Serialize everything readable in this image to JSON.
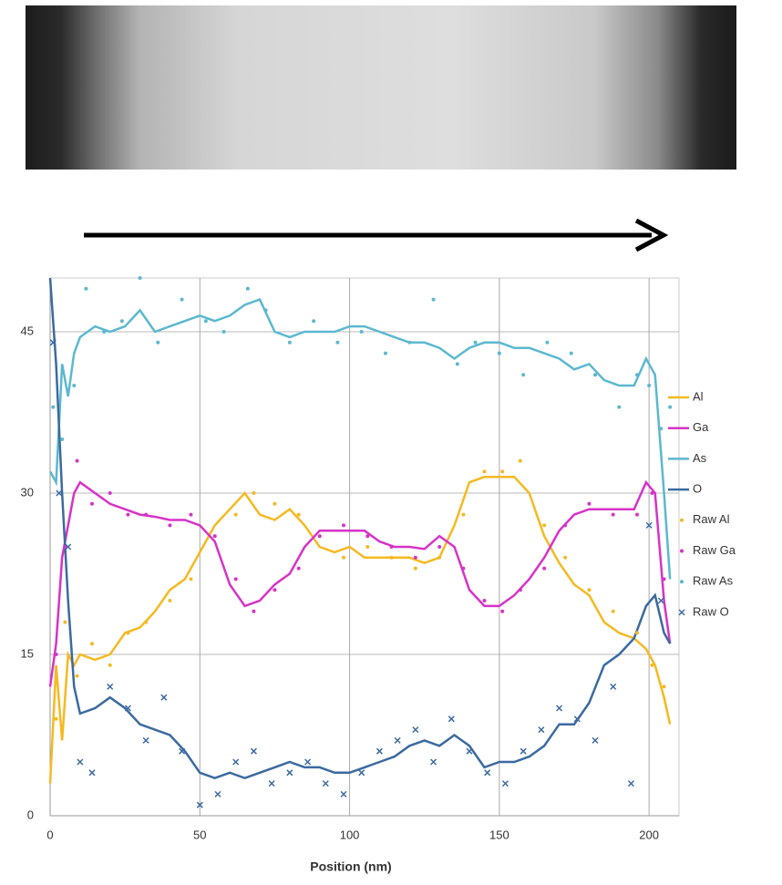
{
  "chart_data": {
    "type": "line",
    "x_label": "Position (nm)",
    "xlim": [
      0,
      210
    ],
    "ylim": [
      0,
      50
    ],
    "xticks": [
      0,
      50,
      100,
      150,
      200
    ],
    "yticks": [
      0,
      15,
      30,
      45
    ],
    "grid": true,
    "legend": "right",
    "x": [
      0,
      2,
      4,
      6,
      8,
      10,
      15,
      20,
      25,
      30,
      35,
      40,
      45,
      50,
      55,
      60,
      65,
      70,
      75,
      80,
      85,
      90,
      95,
      100,
      105,
      110,
      115,
      120,
      125,
      130,
      135,
      140,
      145,
      150,
      155,
      160,
      165,
      170,
      175,
      180,
      185,
      190,
      195,
      199,
      202,
      205,
      207
    ],
    "series": [
      {
        "name": "Al",
        "color": "#f5b921",
        "style": "line",
        "values": [
          3,
          14,
          7,
          15,
          14,
          15,
          14.5,
          15,
          17,
          17.5,
          19,
          21,
          22,
          24.5,
          27,
          28.5,
          30,
          28,
          27.5,
          28.5,
          27,
          25,
          24.5,
          25,
          24,
          24,
          24,
          24,
          23.5,
          24,
          27,
          31,
          31.5,
          31.5,
          31.5,
          30,
          26,
          23.5,
          21.5,
          20.5,
          18,
          17,
          16.5,
          15.5,
          14,
          11,
          8.5
        ]
      },
      {
        "name": "Ga",
        "color": "#d633c8",
        "style": "line",
        "values": [
          12,
          16,
          24,
          27,
          30,
          31,
          30,
          29,
          28.5,
          28,
          27.8,
          27.5,
          27.5,
          27,
          25.5,
          21.5,
          19.5,
          20,
          21.5,
          22.5,
          25,
          26.5,
          26.5,
          26.5,
          26.5,
          25.5,
          25,
          25,
          24.8,
          26,
          25,
          21,
          19.5,
          19.5,
          20.5,
          22,
          24,
          26.5,
          28,
          28.5,
          28.5,
          28.5,
          28.5,
          31,
          30,
          20,
          16
        ]
      },
      {
        "name": "As",
        "color": "#5bb8cf",
        "style": "line",
        "values": [
          32,
          31,
          42,
          39,
          43,
          44.5,
          45.5,
          45,
          45.5,
          47,
          45,
          45.5,
          46,
          46.5,
          46,
          46.5,
          47.5,
          48,
          45,
          44.5,
          45,
          45,
          45,
          45.5,
          45.5,
          45,
          44.5,
          44,
          44,
          43.5,
          42.5,
          43.5,
          44,
          44,
          43.5,
          43.5,
          43,
          42.5,
          41.5,
          42,
          40.5,
          40,
          40,
          42.5,
          41,
          30,
          22
        ]
      },
      {
        "name": "O",
        "color": "#3b6aa0",
        "style": "line",
        "values": [
          50,
          42,
          30,
          20,
          12,
          9.5,
          10,
          11,
          10,
          8.5,
          8,
          7.5,
          6,
          4,
          3.5,
          4,
          3.5,
          4,
          4.5,
          5,
          4.5,
          4.5,
          4,
          4,
          4.5,
          5,
          5.5,
          6.5,
          7,
          6.5,
          7.5,
          6.5,
          4.5,
          5,
          5,
          5.5,
          6.5,
          8.5,
          8.5,
          10.5,
          14,
          15,
          16.5,
          19.5,
          20.5,
          17,
          16
        ]
      },
      {
        "name": "Raw Al",
        "color": "#f5b921",
        "style": "dot",
        "x": [
          2,
          5,
          9,
          14,
          20,
          26,
          32,
          40,
          47,
          55,
          62,
          68,
          75,
          83,
          90,
          98,
          106,
          114,
          122,
          130,
          138,
          145,
          151,
          157,
          165,
          172,
          180,
          188,
          196,
          201,
          205
        ],
        "values": [
          9,
          18,
          13,
          16,
          14,
          17,
          18,
          20,
          22,
          26,
          28,
          30,
          29,
          28,
          26,
          24,
          25,
          24,
          23,
          24,
          28,
          32,
          32,
          33,
          27,
          24,
          21,
          19,
          17,
          14,
          12
        ]
      },
      {
        "name": "Raw Ga",
        "color": "#d633c8",
        "style": "dot",
        "x": [
          2,
          5,
          9,
          14,
          20,
          26,
          32,
          40,
          47,
          55,
          62,
          68,
          75,
          83,
          90,
          98,
          106,
          114,
          122,
          130,
          138,
          145,
          151,
          157,
          165,
          172,
          180,
          188,
          196,
          201,
          205
        ],
        "values": [
          15,
          25,
          33,
          29,
          30,
          28,
          28,
          27,
          28,
          26,
          22,
          19,
          21,
          23,
          26,
          27,
          26,
          25,
          24,
          25,
          23,
          20,
          19,
          21,
          23,
          27,
          29,
          28,
          28,
          30,
          22
        ]
      },
      {
        "name": "Raw As",
        "color": "#5bb8cf",
        "style": "dot",
        "x": [
          1,
          4,
          8,
          12,
          18,
          24,
          30,
          36,
          44,
          52,
          58,
          66,
          72,
          80,
          88,
          96,
          104,
          112,
          120,
          128,
          136,
          142,
          150,
          158,
          166,
          174,
          182,
          190,
          196,
          200,
          204,
          207
        ],
        "values": [
          38,
          35,
          40,
          49,
          45,
          46,
          50,
          44,
          48,
          46,
          45,
          49,
          47,
          44,
          46,
          44,
          45,
          43,
          44,
          48,
          42,
          44,
          43,
          41,
          44,
          43,
          41,
          38,
          41,
          40,
          36,
          38
        ]
      },
      {
        "name": "Raw O",
        "color": "#3b6aa0",
        "style": "cross",
        "x": [
          1,
          3,
          6,
          10,
          14,
          20,
          26,
          32,
          38,
          44,
          50,
          56,
          62,
          68,
          74,
          80,
          86,
          92,
          98,
          104,
          110,
          116,
          122,
          128,
          134,
          140,
          146,
          152,
          158,
          164,
          170,
          176,
          182,
          188,
          194,
          200,
          204
        ],
        "values": [
          44,
          30,
          25,
          5,
          4,
          12,
          10,
          7,
          11,
          6,
          1,
          2,
          5,
          6,
          3,
          4,
          5,
          3,
          2,
          4,
          6,
          7,
          8,
          5,
          9,
          6,
          4,
          3,
          6,
          8,
          10,
          9,
          7,
          12,
          3,
          27,
          20
        ]
      }
    ]
  }
}
